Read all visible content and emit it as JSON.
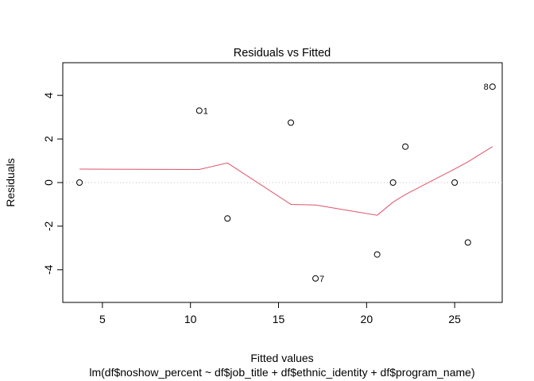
{
  "chart_data": {
    "type": "scatter",
    "title": "Residuals vs Fitted",
    "xlabel": "Fitted values",
    "ylabel": "Residuals",
    "subtitle": "lm(df$noshow_percent ~ df$job_title + df$ethnic_identity + df$program_name)",
    "xlim": [
      2.75,
      27.7
    ],
    "ylim": [
      -5.5,
      5.5
    ],
    "xticks": [
      5,
      10,
      15,
      20,
      25
    ],
    "yticks": [
      -4,
      -2,
      0,
      2,
      4
    ],
    "grid": false,
    "reference_line_y": 0,
    "points": [
      {
        "x": 3.7,
        "y": 0.0,
        "label": ""
      },
      {
        "x": 10.5,
        "y": 3.3,
        "label": "1"
      },
      {
        "x": 12.1,
        "y": -1.65,
        "label": ""
      },
      {
        "x": 15.7,
        "y": 2.75,
        "label": ""
      },
      {
        "x": 17.1,
        "y": -4.4,
        "label": "7"
      },
      {
        "x": 20.6,
        "y": -3.3,
        "label": ""
      },
      {
        "x": 21.5,
        "y": 0.0,
        "label": ""
      },
      {
        "x": 22.2,
        "y": 1.65,
        "label": ""
      },
      {
        "x": 25.0,
        "y": 0.0,
        "label": ""
      },
      {
        "x": 25.75,
        "y": -2.75,
        "label": ""
      },
      {
        "x": 27.15,
        "y": 4.4,
        "label": "8"
      }
    ],
    "smooth_line": [
      {
        "x": 3.7,
        "y": 0.62
      },
      {
        "x": 10.5,
        "y": 0.6
      },
      {
        "x": 12.1,
        "y": 0.9
      },
      {
        "x": 15.7,
        "y": -1.0
      },
      {
        "x": 17.1,
        "y": -1.03
      },
      {
        "x": 20.6,
        "y": -1.5
      },
      {
        "x": 21.5,
        "y": -0.9
      },
      {
        "x": 22.2,
        "y": -0.55
      },
      {
        "x": 25.0,
        "y": 0.62
      },
      {
        "x": 25.75,
        "y": 0.95
      },
      {
        "x": 27.15,
        "y": 1.65
      }
    ],
    "colors": {
      "smooth_line": "#DF536B",
      "reference_line": "#BEBEBE",
      "points": "#000000"
    }
  }
}
